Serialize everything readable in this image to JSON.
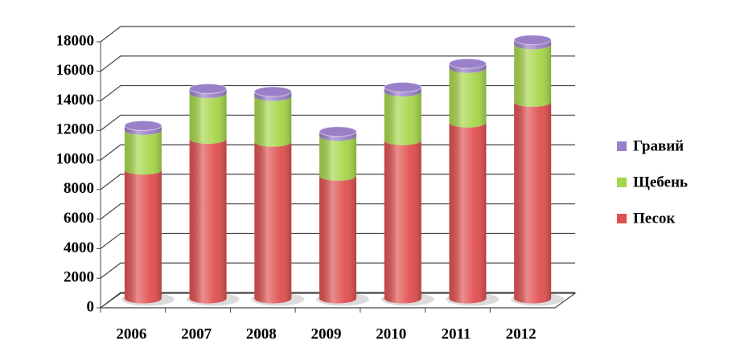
{
  "chart_data": {
    "type": "bar3d-stacked",
    "categories": [
      "2006",
      "2007",
      "2008",
      "2009",
      "2010",
      "2011",
      "2012"
    ],
    "series": [
      {
        "name": "Песок",
        "color": "#e0504f",
        "values": [
          8700,
          10800,
          10600,
          8300,
          10700,
          11900,
          13300
        ]
      },
      {
        "name": "Щебень",
        "color": "#a6d64a",
        "values": [
          2700,
          3100,
          3100,
          2700,
          3300,
          3700,
          3900
        ]
      },
      {
        "name": "Гравий",
        "color": "#9a80c8",
        "values": [
          300,
          300,
          300,
          300,
          300,
          300,
          300
        ]
      }
    ],
    "ylim": [
      0,
      18000
    ],
    "yticks": [
      0,
      2000,
      4000,
      6000,
      8000,
      10000,
      12000,
      14000,
      16000,
      18000
    ],
    "grid": true,
    "legend": "right"
  }
}
